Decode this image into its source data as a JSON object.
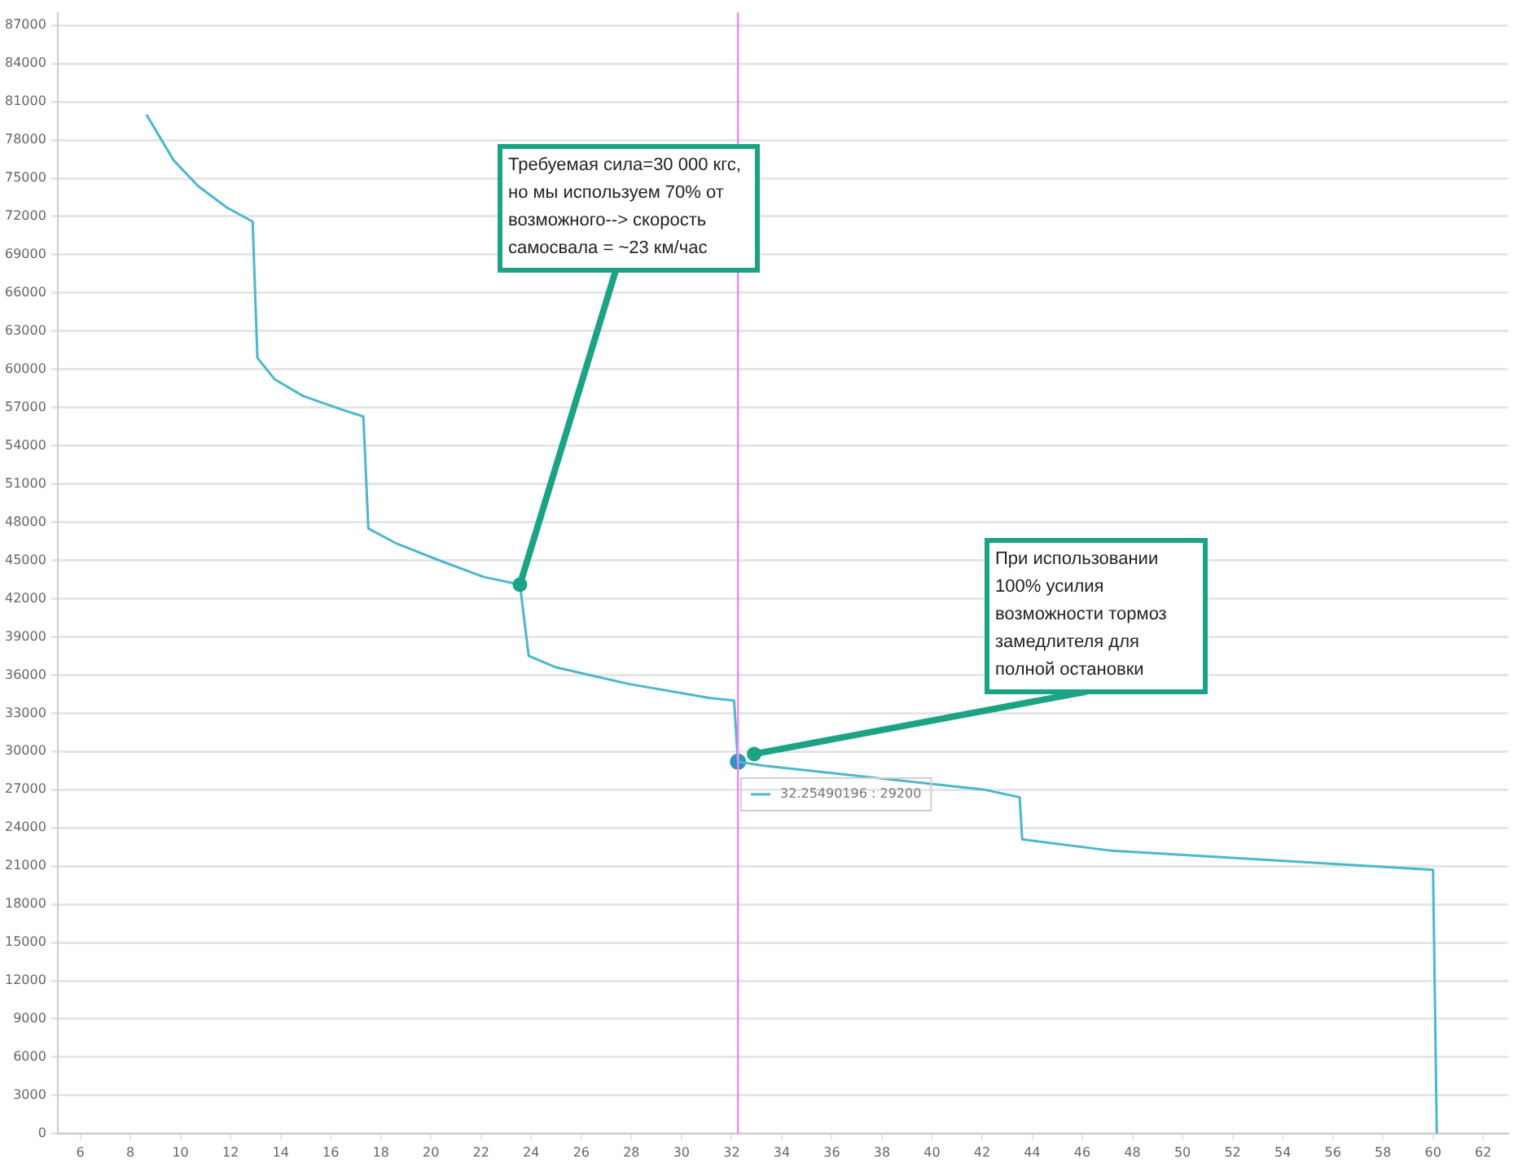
{
  "chart_data": {
    "type": "line",
    "x": [
      8.64,
      9.73,
      10.7,
      11.85,
      12.88,
      13.07,
      13.77,
      14.9,
      16.5,
      17.3,
      17.5,
      18.65,
      20.2,
      22.1,
      23.55,
      23.9,
      25.0,
      27.9,
      31.1,
      32.1,
      32.25,
      33.2,
      42.1,
      43.5,
      43.6,
      47.2,
      52.4,
      60.0,
      60.15
    ],
    "series": [
      {
        "color": "#4bb8cc",
        "marker": "none",
        "line_style": "solid",
        "values": [
          80000,
          76400,
          74400,
          72700,
          71600,
          60900,
          59200,
          57900,
          56800,
          56300,
          47500,
          46300,
          45100,
          43700,
          43100,
          37500,
          36600,
          35300,
          34200,
          34000,
          29200,
          28900,
          27000,
          26400,
          23100,
          22200,
          21600,
          20700,
          0
        ]
      },
      {
        "type": "scatter",
        "color": "#2e94c4",
        "marker": "circle",
        "x": [
          32.25490196
        ],
        "values": [
          29200
        ]
      }
    ],
    "xlim": [
      5.1,
      63
    ],
    "ylim": [
      0,
      88000
    ],
    "xticks": [
      6,
      8,
      10,
      12,
      14,
      16,
      18,
      20,
      22,
      24,
      26,
      28,
      30,
      32,
      34,
      36,
      38,
      40,
      42,
      44,
      46,
      48,
      50,
      52,
      54,
      56,
      58,
      60,
      62
    ],
    "yticks": [
      0,
      3000,
      6000,
      9000,
      12000,
      15000,
      18000,
      21000,
      24000,
      27000,
      30000,
      33000,
      36000,
      39000,
      42000,
      45000,
      48000,
      51000,
      54000,
      57000,
      60000,
      63000,
      66000,
      69000,
      72000,
      75000,
      78000,
      81000,
      84000,
      87000
    ],
    "grid": "y",
    "legend": false,
    "ref_lines": [
      {
        "axis": "x",
        "value": 32.25490196,
        "color": "#ee88ee"
      }
    ],
    "annotations": [
      {
        "text": "Требуемая сила=30 000 кгс, но мы используем 70% от возможного--> скорость самосвала = ~23 км/час",
        "x": 23.55,
        "y": 43100
      },
      {
        "text": "При использовании 100% усилия возможности тормоз замедлителя для полной остановки",
        "x": 32.9,
        "y": 29800
      },
      "32.25490196 : 29200"
    ]
  }
}
